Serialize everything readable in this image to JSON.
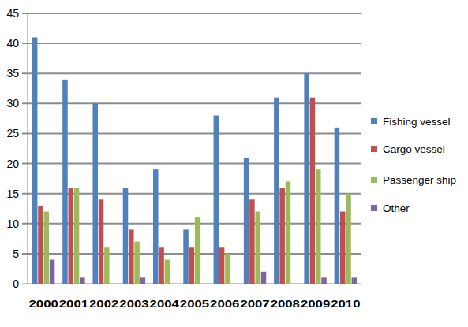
{
  "chart_data": {
    "type": "bar",
    "categories": [
      "2000",
      "2001",
      "2002",
      "2003",
      "2004",
      "2005",
      "2006",
      "2007",
      "2008",
      "2009",
      "2010"
    ],
    "series": [
      {
        "name": "Fishing vessel",
        "color": "#4f81bd",
        "values": [
          41,
          34,
          30,
          16,
          19,
          9,
          28,
          21,
          31,
          35,
          26
        ]
      },
      {
        "name": "Cargo vessel",
        "color": "#c0504d",
        "values": [
          13,
          16,
          14,
          9,
          6,
          6,
          6,
          14,
          16,
          31,
          12
        ]
      },
      {
        "name": "Passenger ship",
        "color": "#9bbb59",
        "values": [
          12,
          16,
          6,
          7,
          4,
          11,
          5,
          12,
          17,
          19,
          15
        ]
      },
      {
        "name": "Other",
        "color": "#8064a2",
        "values": [
          4,
          1,
          0,
          1,
          0,
          0,
          0,
          2,
          0,
          1,
          1
        ]
      }
    ],
    "ylim": [
      0,
      45
    ],
    "yticks": [
      0,
      5,
      10,
      15,
      20,
      25,
      30,
      35,
      40,
      45
    ],
    "grid": true,
    "legend": "right"
  }
}
